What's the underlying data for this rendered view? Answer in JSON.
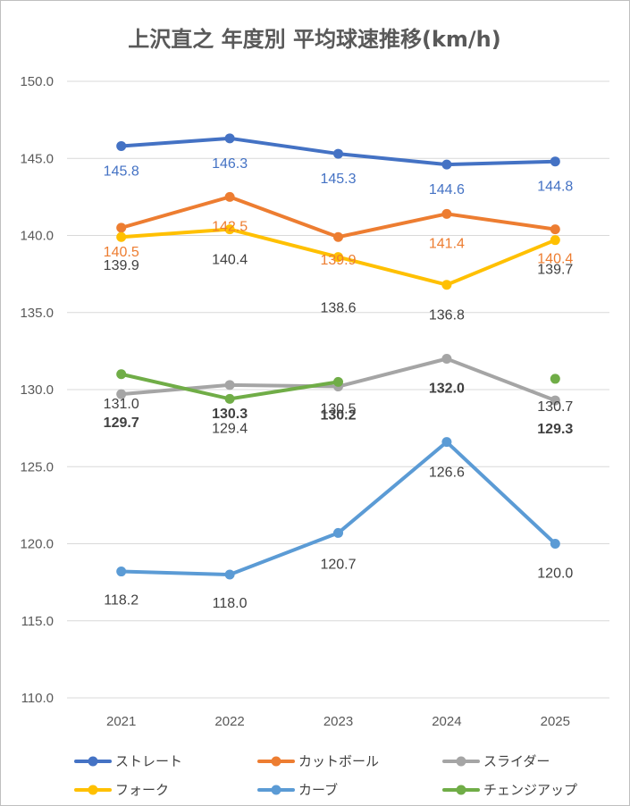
{
  "chart_data": {
    "type": "line",
    "title": "上沢直之 年度別 平均球速推移(km/h)",
    "categories": [
      "2021",
      "2022",
      "2023",
      "2024",
      "2025"
    ],
    "ylim": [
      110.0,
      150.0
    ],
    "yticks": [
      "110.0",
      "115.0",
      "120.0",
      "125.0",
      "130.0",
      "135.0",
      "140.0",
      "145.0",
      "150.0"
    ],
    "grid": true,
    "legend_position": "bottom",
    "series": [
      {
        "name": "ストレート",
        "color": "#4472c4",
        "values": [
          145.8,
          146.3,
          145.3,
          144.6,
          144.8
        ],
        "labels": [
          "145.8",
          "146.3",
          "145.3",
          "144.6",
          "144.8"
        ]
      },
      {
        "name": "カットボール",
        "color": "#ed7d31",
        "values": [
          140.5,
          142.5,
          139.9,
          141.4,
          140.4
        ],
        "labels": [
          "140.5",
          "142.5",
          "139.9",
          "141.4",
          "140.4"
        ]
      },
      {
        "name": "スライダー",
        "color": "#a5a5a5",
        "values": [
          129.7,
          130.3,
          130.2,
          132.0,
          129.3
        ],
        "labels": [
          "129.7",
          "130.3",
          "130.2",
          "132.0",
          "129.3"
        ]
      },
      {
        "name": "フォーク",
        "color": "#ffc000",
        "values": [
          139.9,
          140.4,
          138.6,
          136.8,
          139.7
        ],
        "labels": [
          "139.9",
          "140.4",
          "138.6",
          "136.8",
          "139.7"
        ]
      },
      {
        "name": "カーブ",
        "color": "#5b9bd5",
        "values": [
          118.2,
          118.0,
          120.7,
          126.6,
          120.0
        ],
        "labels": [
          "118.2",
          "118.0",
          "120.7",
          "126.6",
          "120.0"
        ]
      },
      {
        "name": "チェンジアップ",
        "color": "#70ad47",
        "values": [
          131.0,
          129.4,
          130.5,
          null,
          130.7
        ],
        "labels": [
          "131.0",
          "129.4",
          "130.5",
          "",
          "130.7"
        ]
      }
    ]
  }
}
